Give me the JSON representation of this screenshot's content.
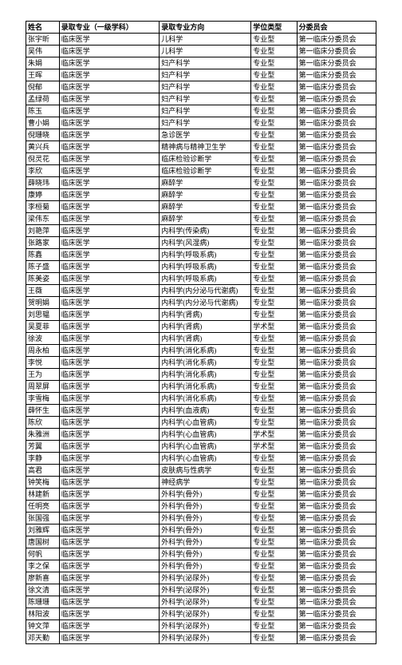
{
  "table": {
    "columns": [
      "姓名",
      "录取专业（一级学科）",
      "录取专业方向",
      "学位类型",
      "分委员会"
    ],
    "rows": [
      [
        "张宇昕",
        "临床医学",
        "儿科学",
        "专业型",
        "第一临床分委员会"
      ],
      [
        "吴伟",
        "临床医学",
        "儿科学",
        "专业型",
        "第一临床分委员会"
      ],
      [
        "朱娟",
        "临床医学",
        "妇产科学",
        "专业型",
        "第一临床分委员会"
      ],
      [
        "王晖",
        "临床医学",
        "妇产科学",
        "专业型",
        "第一临床分委员会"
      ],
      [
        "倪郁",
        "临床医学",
        "妇产科学",
        "专业型",
        "第一临床分委员会"
      ],
      [
        "孟绿荷",
        "临床医学",
        "妇产科学",
        "专业型",
        "第一临床分委员会"
      ],
      [
        "陈玉",
        "临床医学",
        "妇产科学",
        "专业型",
        "第一临床分委员会"
      ],
      [
        "曹小娟",
        "临床医学",
        "妇产科学",
        "专业型",
        "第一临床分委员会"
      ],
      [
        "倪珊晓",
        "临床医学",
        "急诊医学",
        "专业型",
        "第一临床分委员会"
      ],
      [
        "黄兴兵",
        "临床医学",
        "精神病与精神卫生学",
        "专业型",
        "第一临床分委员会"
      ],
      [
        "倪灵花",
        "临床医学",
        "临床检验诊断学",
        "专业型",
        "第一临床分委员会"
      ],
      [
        "李欣",
        "临床医学",
        "临床检验诊断学",
        "专业型",
        "第一临床分委员会"
      ],
      [
        "薛晓玮",
        "临床医学",
        "麻醉学",
        "专业型",
        "第一临床分委员会"
      ],
      [
        "康婷",
        "临床医学",
        "麻醉学",
        "专业型",
        "第一临床分委员会"
      ],
      [
        "李桓菊",
        "临床医学",
        "麻醉学",
        "专业型",
        "第一临床分委员会"
      ],
      [
        "梁伟东",
        "临床医学",
        "麻醉学",
        "专业型",
        "第一临床分委员会"
      ],
      [
        "刘艳萍",
        "临床医学",
        "内科学(传染病)",
        "专业型",
        "第一临床分委员会"
      ],
      [
        "张路家",
        "临床医学",
        "内科学(风湿病)",
        "专业型",
        "第一临床分委员会"
      ],
      [
        "陈鑫",
        "临床医学",
        "内科学(呼吸系病)",
        "专业型",
        "第一临床分委员会"
      ],
      [
        "陈子盛",
        "临床医学",
        "内科学(呼吸系病)",
        "专业型",
        "第一临床分委员会"
      ],
      [
        "陈美姿",
        "临床医学",
        "内科学(呼吸系病)",
        "专业型",
        "第一临床分委员会"
      ],
      [
        "王薇",
        "临床医学",
        "内科学(内分泌与代谢病)",
        "专业型",
        "第一临床分委员会"
      ],
      [
        "贺明娟",
        "临床医学",
        "内科学(内分泌与代谢病)",
        "专业型",
        "第一临床分委员会"
      ],
      [
        "刘思韫",
        "临床医学",
        "内科学(肾病)",
        "专业型",
        "第一临床分委员会"
      ],
      [
        "吴夏菲",
        "临床医学",
        "内科学(肾病)",
        "学术型",
        "第一临床分委员会"
      ],
      [
        "徐波",
        "临床医学",
        "内科学(肾病)",
        "专业型",
        "第一临床分委员会"
      ],
      [
        "周永柏",
        "临床医学",
        "内科学(消化系病)",
        "专业型",
        "第一临床分委员会"
      ],
      [
        "李悦",
        "临床医学",
        "内科学(消化系病)",
        "专业型",
        "第一临床分委员会"
      ],
      [
        "王为",
        "临床医学",
        "内科学(消化系病)",
        "专业型",
        "第一临床分委员会"
      ],
      [
        "周翠屏",
        "临床医学",
        "内科学(消化系病)",
        "专业型",
        "第一临床分委员会"
      ],
      [
        "李雪梅",
        "临床医学",
        "内科学(消化系病)",
        "专业型",
        "第一临床分委员会"
      ],
      [
        "薛怀生",
        "临床医学",
        "内科学(血液病)",
        "专业型",
        "第一临床分委员会"
      ],
      [
        "陈欣",
        "临床医学",
        "内科学(心血管病)",
        "专业型",
        "第一临床分委员会"
      ],
      [
        "朱雅洲",
        "临床医学",
        "内科学(心血管病)",
        "学术型",
        "第一临床分委员会"
      ],
      [
        "芳翼",
        "临床医学",
        "内科学(心血管病)",
        "学术型",
        "第一临床分委员会"
      ],
      [
        "李静",
        "临床医学",
        "内科学(心血管病)",
        "专业型",
        "第一临床分委员会"
      ],
      [
        "高君",
        "临床医学",
        "皮肤病与性病学",
        "专业型",
        "第一临床分委员会"
      ],
      [
        "钟笑梅",
        "临床医学",
        "神经病学",
        "专业型",
        "第一临床分委员会"
      ],
      [
        "林建新",
        "临床医学",
        "外科学(骨外)",
        "专业型",
        "第一临床分委员会"
      ],
      [
        "任明亮",
        "临床医学",
        "外科学(骨外)",
        "专业型",
        "第一临床分委员会"
      ],
      [
        "张国强",
        "临床医学",
        "外科学(骨外)",
        "专业型",
        "第一临床分委员会"
      ],
      [
        "刘雅辉",
        "临床医学",
        "外科学(骨外)",
        "专业型",
        "第一临床分委员会"
      ],
      [
        "唐国树",
        "临床医学",
        "外科学(骨外)",
        "专业型",
        "第一临床分委员会"
      ],
      [
        "何帆",
        "临床医学",
        "外科学(骨外)",
        "专业型",
        "第一临床分委员会"
      ],
      [
        "李之保",
        "临床医学",
        "外科学(骨外)",
        "专业型",
        "第一临床分委员会"
      ],
      [
        "廖新喜",
        "临床医学",
        "外科学(泌尿外)",
        "专业型",
        "第一临床分委员会"
      ],
      [
        "徐文清",
        "临床医学",
        "外科学(泌尿外)",
        "专业型",
        "第一临床分委员会"
      ],
      [
        "陈珊珊",
        "临床医学",
        "外科学(泌尿外)",
        "专业型",
        "第一临床分委员会"
      ],
      [
        "林阳波",
        "临床医学",
        "外科学(泌尿外)",
        "专业型",
        "第一临床分委员会"
      ],
      [
        "钟文萍",
        "临床医学",
        "外科学(泌尿外)",
        "专业型",
        "第一临床分委员会"
      ],
      [
        "邓天勤",
        "临床医学",
        "外科学(泌尿外)",
        "专业型",
        "第一临床分委员会"
      ]
    ]
  }
}
